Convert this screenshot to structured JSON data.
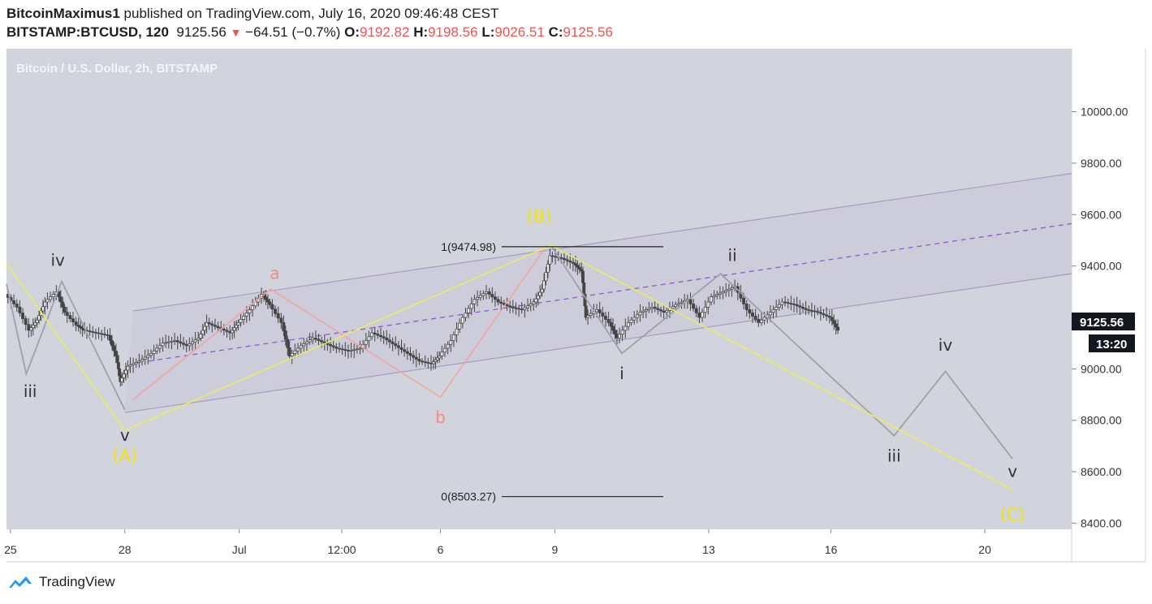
{
  "header": {
    "author": "BitcoinMaximus1",
    "published": "published on TradingView.com, July 16, 2020 09:46:48 CEST",
    "symbol": "BITSTAMP:BTCUSD, 120",
    "last": "9125.56",
    "change_arrow": "▼",
    "change": "−64.51 (−0.7%)",
    "open_label": "O:",
    "open": "9192.82",
    "high_label": "H:",
    "high": "9198.56",
    "low_label": "L:",
    "low": "9026.51",
    "close_label": "C:",
    "close": "9125.56"
  },
  "footer": {
    "brand": "TradingView",
    "logo_icon": "tradingview-logo-icon"
  },
  "chart_data": {
    "type": "candlestick",
    "title": "Bitcoin / U.S. Dollar, 2h, BITSTAMP",
    "y_ticks": [
      "10000.00",
      "9800.00",
      "9600.00",
      "9400.00",
      "9200.00",
      "9000.00",
      "8800.00",
      "8600.00",
      "8400.00"
    ],
    "y_tick_values": [
      10000,
      9800,
      9600,
      9400,
      9200,
      9000,
      8800,
      8600,
      8400
    ],
    "ylim": [
      8376,
      10245
    ],
    "x_ticks": [
      "25",
      "28",
      "Jul",
      "12:00",
      "6",
      "9",
      "13",
      "16",
      "20"
    ],
    "x_tick_days": [
      25.1,
      28.0,
      30.9,
      33.5,
      36.0,
      38.9,
      42.8,
      45.9,
      49.8
    ],
    "xlim": [
      25.0,
      52.0
    ],
    "last_price_label": "9125.56",
    "countdown_label": "13:20",
    "price_series_close": [
      [
        25.0,
        9290
      ],
      [
        25.3,
        9240
      ],
      [
        25.6,
        9150
      ],
      [
        25.8,
        9190
      ],
      [
        26.0,
        9260
      ],
      [
        26.3,
        9300
      ],
      [
        26.5,
        9220
      ],
      [
        26.8,
        9170
      ],
      [
        27.0,
        9150
      ],
      [
        27.3,
        9140
      ],
      [
        27.6,
        9130
      ],
      [
        27.8,
        9050
      ],
      [
        27.9,
        8950
      ],
      [
        28.1,
        9010
      ],
      [
        28.4,
        9030
      ],
      [
        28.7,
        9060
      ],
      [
        29.0,
        9100
      ],
      [
        29.3,
        9110
      ],
      [
        29.6,
        9090
      ],
      [
        29.9,
        9120
      ],
      [
        30.1,
        9180
      ],
      [
        30.4,
        9160
      ],
      [
        30.7,
        9140
      ],
      [
        30.9,
        9180
      ],
      [
        31.2,
        9230
      ],
      [
        31.5,
        9290
      ],
      [
        31.7,
        9250
      ],
      [
        32.0,
        9180
      ],
      [
        32.2,
        9050
      ],
      [
        32.5,
        9090
      ],
      [
        32.8,
        9120
      ],
      [
        33.1,
        9100
      ],
      [
        33.4,
        9080
      ],
      [
        33.7,
        9070
      ],
      [
        34.0,
        9080
      ],
      [
        34.3,
        9140
      ],
      [
        34.6,
        9120
      ],
      [
        34.9,
        9090
      ],
      [
        35.2,
        9060
      ],
      [
        35.5,
        9030
      ],
      [
        35.8,
        9020
      ],
      [
        36.0,
        9050
      ],
      [
        36.3,
        9110
      ],
      [
        36.6,
        9200
      ],
      [
        36.9,
        9270
      ],
      [
        37.2,
        9300
      ],
      [
        37.5,
        9260
      ],
      [
        37.8,
        9240
      ],
      [
        38.1,
        9230
      ],
      [
        38.4,
        9260
      ],
      [
        38.6,
        9310
      ],
      [
        38.8,
        9440
      ],
      [
        39.1,
        9430
      ],
      [
        39.4,
        9410
      ],
      [
        39.6,
        9380
      ],
      [
        39.7,
        9200
      ],
      [
        40.0,
        9230
      ],
      [
        40.3,
        9180
      ],
      [
        40.5,
        9120
      ],
      [
        40.8,
        9180
      ],
      [
        41.1,
        9220
      ],
      [
        41.4,
        9240
      ],
      [
        41.7,
        9220
      ],
      [
        42.0,
        9250
      ],
      [
        42.3,
        9270
      ],
      [
        42.6,
        9200
      ],
      [
        42.9,
        9280
      ],
      [
        43.2,
        9300
      ],
      [
        43.5,
        9320
      ],
      [
        43.8,
        9230
      ],
      [
        44.1,
        9180
      ],
      [
        44.4,
        9220
      ],
      [
        44.7,
        9260
      ],
      [
        45.0,
        9250
      ],
      [
        45.3,
        9230
      ],
      [
        45.6,
        9220
      ],
      [
        45.9,
        9200
      ],
      [
        46.1,
        9150
      ]
    ],
    "fib_levels": [
      {
        "label": "1(9474.98)",
        "value": 9474.98
      },
      {
        "label": "0(8503.27)",
        "value": 8503.27
      }
    ],
    "channel": {
      "upper": [
        [
          28.2,
          9225
        ],
        [
          52.0,
          9760
        ]
      ],
      "lower": [
        [
          28.0,
          8830
        ],
        [
          52.0,
          9370
        ]
      ],
      "mid": [
        [
          28.6,
          9030
        ],
        [
          52.0,
          9565
        ]
      ]
    },
    "waves": {
      "yellow_primary": [
        [
          25.0,
          9410
        ],
        [
          28.0,
          8760
        ],
        [
          38.8,
          9480
        ],
        [
          50.5,
          8530
        ]
      ],
      "pink_abc": [
        [
          28.2,
          8880
        ],
        [
          31.7,
          9310
        ],
        [
          36.0,
          8890
        ],
        [
          38.7,
          9480
        ]
      ],
      "gray_lower": [
        [
          25.0,
          9330
        ],
        [
          25.5,
          8980
        ],
        [
          26.4,
          9340
        ],
        [
          28.0,
          8840
        ]
      ],
      "gray_upper": [
        [
          38.8,
          9480
        ],
        [
          40.6,
          9060
        ],
        [
          43.1,
          9370
        ],
        [
          47.5,
          8740
        ],
        [
          48.8,
          8990
        ],
        [
          50.5,
          8650
        ]
      ]
    },
    "annotations": [
      {
        "text": "iv",
        "x": 26.3,
        "y": 9400,
        "color": "#333333"
      },
      {
        "text": "iii",
        "x": 25.6,
        "y": 8890,
        "color": "#333333"
      },
      {
        "text": "v",
        "x": 28.0,
        "y": 8720,
        "color": "#333333"
      },
      {
        "text": "(A)",
        "x": 28.0,
        "y": 8640,
        "color": "#f2e600"
      },
      {
        "text": "a",
        "x": 31.8,
        "y": 9350,
        "color": "#f28b82"
      },
      {
        "text": "b",
        "x": 36.0,
        "y": 8790,
        "color": "#f28b82"
      },
      {
        "text": "(B)",
        "x": 38.5,
        "y": 9570,
        "color": "#f2e600"
      },
      {
        "text": "i",
        "x": 40.6,
        "y": 8960,
        "color": "#333333"
      },
      {
        "text": "ii",
        "x": 43.4,
        "y": 9420,
        "color": "#333333"
      },
      {
        "text": "iii",
        "x": 47.5,
        "y": 8640,
        "color": "#333333"
      },
      {
        "text": "iv",
        "x": 48.8,
        "y": 9070,
        "color": "#333333"
      },
      {
        "text": "v",
        "x": 50.5,
        "y": 8580,
        "color": "#333333"
      },
      {
        "text": "(C)",
        "x": 50.5,
        "y": 8410,
        "color": "#f2e600"
      }
    ],
    "colors": {
      "background": "#d1d4dc",
      "channel_fill": "#c9c4d8",
      "channel_line": "#a99cc0",
      "mid_dash": "#8e5cc7",
      "yellow_wave": "#ecec5a",
      "pink_wave": "#f3a3a0",
      "gray_wave": "#9ea1a8",
      "candle": "#444444",
      "axis_text": "#333333",
      "last_price_box": "#131722"
    }
  }
}
